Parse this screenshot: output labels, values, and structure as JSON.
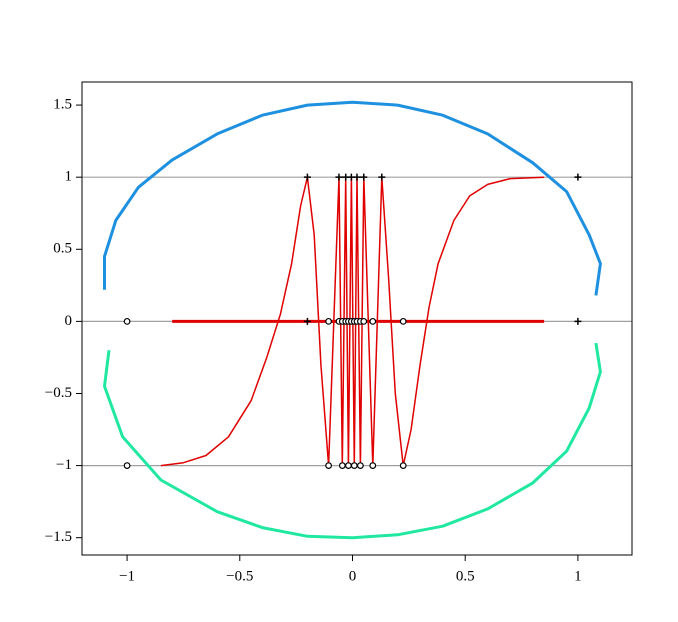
{
  "chart_data": {
    "type": "line",
    "xlim": [
      -1.2,
      1.24
    ],
    "ylim": [
      -1.62,
      1.66
    ],
    "xticks": [
      {
        "value": -1,
        "label": "−1"
      },
      {
        "value": -0.5,
        "label": "−0.5"
      },
      0,
      0.5,
      1
    ],
    "yticks": [
      {
        "value": -1.5,
        "label": "−1.5"
      },
      {
        "value": -1,
        "label": "−1"
      },
      {
        "value": -0.5,
        "label": "−0.5"
      },
      0,
      0.5,
      1,
      1.5
    ],
    "hlines": [
      -1,
      0,
      1
    ],
    "hline_color": "#a0a0a0",
    "series": [
      {
        "style": "line",
        "color": "#1e90e0",
        "width": 3,
        "x": [
          -1.1,
          -1.1,
          -1.05,
          -0.95,
          -0.8,
          -0.6,
          -0.4,
          -0.2,
          0,
          0.2,
          0.4,
          0.6,
          0.8,
          0.95,
          1.05,
          1.1,
          1.08
        ],
        "y": [
          0.22,
          0.45,
          0.7,
          0.93,
          1.12,
          1.3,
          1.43,
          1.5,
          1.52,
          1.5,
          1.43,
          1.3,
          1.1,
          0.9,
          0.6,
          0.4,
          0.18
        ]
      },
      {
        "style": "line",
        "color": "#20e8a0",
        "width": 3,
        "x": [
          -1.08,
          -1.1,
          -1.02,
          -0.85,
          -0.6,
          -0.4,
          -0.2,
          0,
          0.2,
          0.4,
          0.6,
          0.8,
          0.95,
          1.05,
          1.1,
          1.08
        ],
        "y": [
          -0.2,
          -0.45,
          -0.8,
          -1.1,
          -1.32,
          -1.43,
          -1.49,
          -1.5,
          -1.48,
          -1.42,
          -1.3,
          -1.12,
          -0.9,
          -0.6,
          -0.35,
          -0.15
        ]
      },
      {
        "style": "line",
        "color": "#e00000",
        "width": 3,
        "x": [
          -0.8,
          0.85
        ],
        "y": [
          0,
          0
        ]
      },
      {
        "style": "line",
        "color": "#e00000",
        "width": 1.5,
        "x": [
          -0.85,
          -0.75,
          -0.65,
          -0.55,
          -0.45,
          -0.38,
          -0.32,
          -0.27,
          -0.23,
          -0.2,
          -0.17,
          -0.14,
          -0.106,
          -0.06,
          -0.045,
          -0.03,
          -0.018,
          -0.005,
          0.008,
          0.02,
          0.035,
          0.05,
          0.09,
          0.13,
          0.16,
          0.19,
          0.225,
          0.26,
          0.3,
          0.34,
          0.38,
          0.45,
          0.52,
          0.6,
          0.7,
          0.85
        ],
        "y": [
          -1,
          -0.98,
          -0.93,
          -0.8,
          -0.55,
          -0.25,
          0.05,
          0.4,
          0.8,
          1,
          0.6,
          -0.3,
          -1,
          1,
          -1,
          1,
          -1,
          1,
          -1,
          1,
          -1,
          1,
          -1,
          1,
          0.3,
          -0.5,
          -1,
          -0.75,
          -0.3,
          0.1,
          0.4,
          0.7,
          0.87,
          0.95,
          0.99,
          1
        ]
      },
      {
        "style": "circle",
        "color": "#000000",
        "x": [
          -1,
          -0.106,
          -0.045,
          -0.018,
          0.008,
          0.035,
          0.09,
          0.225
        ],
        "y": [
          -1,
          -1,
          -1,
          -1,
          -1,
          -1,
          -1,
          -1
        ]
      },
      {
        "style": "circle",
        "color": "#000000",
        "x": [
          -1,
          -0.106,
          -0.06,
          -0.045,
          -0.03,
          -0.018,
          -0.005,
          0.008,
          0.02,
          0.035,
          0.05,
          0.09,
          0.225
        ],
        "y": [
          0,
          0,
          0,
          0,
          0,
          0,
          0,
          0,
          0,
          0,
          0,
          0,
          0
        ]
      },
      {
        "style": "plus",
        "color": "#000000",
        "x": [
          -0.2,
          -0.06,
          -0.03,
          -0.005,
          0.02,
          0.05,
          0.13,
          1,
          -0.2,
          1
        ],
        "y": [
          1,
          1,
          1,
          1,
          1,
          1,
          1,
          1,
          0,
          0
        ]
      }
    ]
  }
}
